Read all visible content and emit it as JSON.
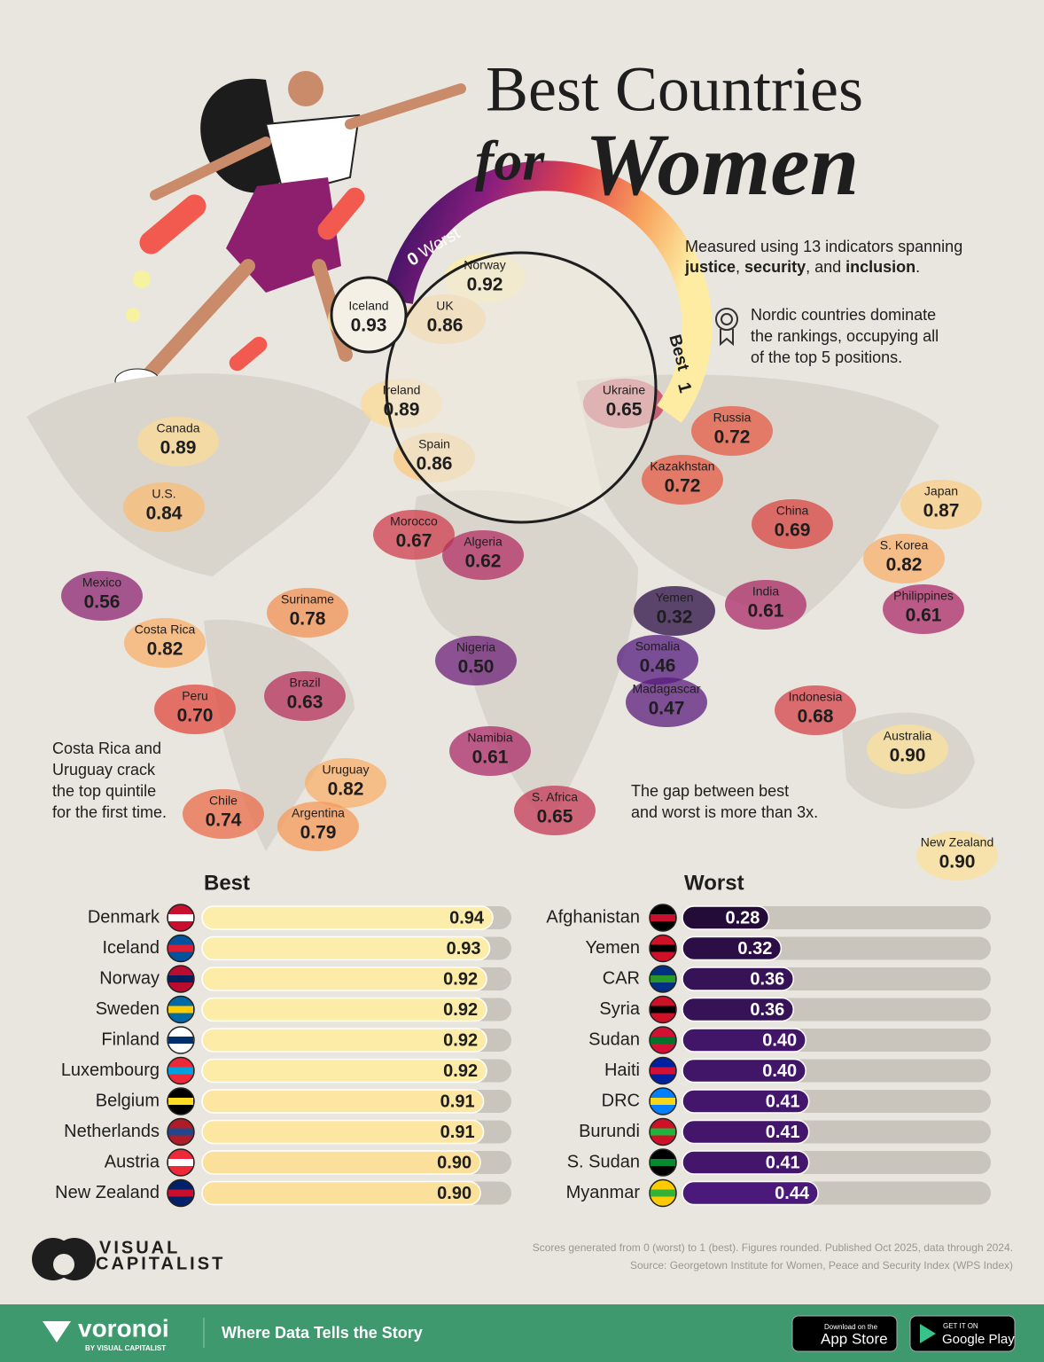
{
  "header": {
    "title_line1": "Best Countries",
    "title_for": "for",
    "title_women": "Women",
    "description_line1": "Measured using 13 indicators spanning",
    "description_line2": [
      "justice",
      ", ",
      "security",
      ", and ",
      "inclusion",
      "."
    ]
  },
  "scale": {
    "low": 0,
    "low_label": "Worst",
    "high": 1,
    "high_label": "Best"
  },
  "notes": [
    [
      "Nordic countries dominate",
      "the rankings, occupying all",
      "of the top 5 positions."
    ],
    [
      "Costa Rica and",
      "Uruguay crack",
      "the top quintile",
      "for the first time."
    ],
    [
      "The gap between best",
      "and worst is more than 3x."
    ]
  ],
  "map_labels": [
    {
      "name": "Norway",
      "value": 0.92
    },
    {
      "name": "Iceland",
      "value": 0.93
    },
    {
      "name": "UK",
      "value": 0.86
    },
    {
      "name": "Ireland",
      "value": 0.89
    },
    {
      "name": "Ukraine",
      "value": 0.65
    },
    {
      "name": "Spain",
      "value": 0.86
    },
    {
      "name": "Russia",
      "value": 0.72
    },
    {
      "name": "Kazakhstan",
      "value": 0.72
    },
    {
      "name": "Canada",
      "value": 0.89
    },
    {
      "name": "U.S.",
      "value": 0.84
    },
    {
      "name": "Japan",
      "value": 0.87
    },
    {
      "name": "China",
      "value": 0.69
    },
    {
      "name": "S. Korea",
      "value": 0.82
    },
    {
      "name": "Morocco",
      "value": 0.67
    },
    {
      "name": "Algeria",
      "value": 0.62
    },
    {
      "name": "Mexico",
      "value": 0.56
    },
    {
      "name": "Suriname",
      "value": 0.78
    },
    {
      "name": "Yemen",
      "value": 0.32
    },
    {
      "name": "India",
      "value": 0.61
    },
    {
      "name": "Philippines",
      "value": 0.61
    },
    {
      "name": "Costa Rica",
      "value": 0.82
    },
    {
      "name": "Nigeria",
      "value": 0.5,
      "label": "0.50"
    },
    {
      "name": "Somalia",
      "value": 0.46
    },
    {
      "name": "Brazil",
      "value": 0.63
    },
    {
      "name": "Peru",
      "value": 0.7,
      "label": "0.70"
    },
    {
      "name": "Madagascar",
      "value": 0.47
    },
    {
      "name": "Indonesia",
      "value": 0.68
    },
    {
      "name": "Namibia",
      "value": 0.61
    },
    {
      "name": "Australia",
      "value": 0.9,
      "label": "0.90"
    },
    {
      "name": "Uruguay",
      "value": 0.82
    },
    {
      "name": "S. Africa",
      "value": 0.65
    },
    {
      "name": "Chile",
      "value": 0.74
    },
    {
      "name": "Argentina",
      "value": 0.79
    },
    {
      "name": "New Zealand",
      "value": 0.9,
      "label": "0.90"
    }
  ],
  "chart_data": [
    {
      "type": "bar",
      "orientation": "horizontal",
      "title": "Best",
      "categories": [
        "Denmark",
        "Iceland",
        "Norway",
        "Sweden",
        "Finland",
        "Luxembourg",
        "Belgium",
        "Netherlands",
        "Austria",
        "New Zealand"
      ],
      "values": [
        0.94,
        0.93,
        0.92,
        0.92,
        0.92,
        0.92,
        0.91,
        0.91,
        0.9,
        0.9
      ],
      "value_labels": [
        "0.94",
        "0.93",
        "0.92",
        "0.92",
        "0.92",
        "0.92",
        "0.91",
        "0.91",
        "0.90",
        "0.90"
      ],
      "xlim": [
        0,
        1
      ]
    },
    {
      "type": "bar",
      "orientation": "horizontal",
      "title": "Worst",
      "categories": [
        "Afghanistan",
        "Yemen",
        "CAR",
        "Syria",
        "Sudan",
        "Haiti",
        "DRC",
        "Burundi",
        "S. Sudan",
        "Myanmar"
      ],
      "values": [
        0.28,
        0.32,
        0.36,
        0.36,
        0.4,
        0.4,
        0.41,
        0.41,
        0.41,
        0.44
      ],
      "value_labels": [
        "0.28",
        "0.32",
        "0.36",
        "0.36",
        "0.40",
        "0.40",
        "0.41",
        "0.41",
        "0.41",
        "0.44"
      ],
      "xlim": [
        0,
        1
      ]
    }
  ],
  "footer": {
    "brand": [
      "VISUAL",
      "CAPITALIST"
    ],
    "note": "Scores generated from 0 (worst) to 1 (best). Figures rounded. Published Oct 2025, data through 2024.",
    "source": "Source: Georgetown Institute for Women, Peace and Security Index (WPS Index)",
    "voronoi": "voronoi",
    "by": "BY VISUAL CAPITALIST",
    "tagline": "Where Data Tells the Story",
    "app_store": [
      "Download on the",
      "App Store"
    ],
    "google_play": [
      "GET IT ON",
      "Google Play"
    ]
  }
}
